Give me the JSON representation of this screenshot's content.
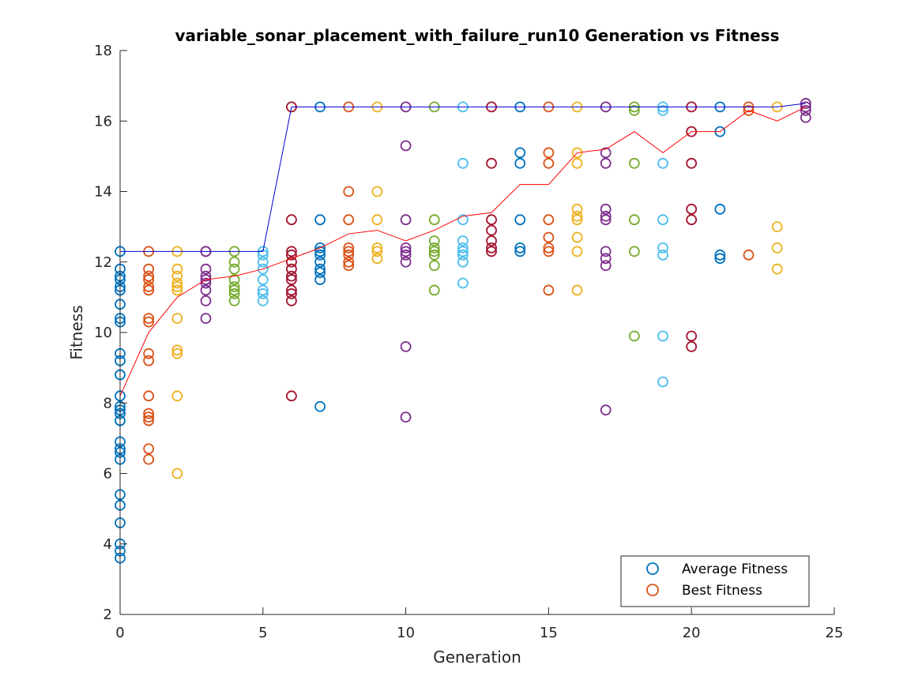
{
  "chart_data": {
    "type": "scatter",
    "title": "variable_sonar_placement_with_failure_run10 Generation vs Fitness",
    "xlabel": "Generation",
    "ylabel": "Fitness",
    "xlim": [
      0,
      25
    ],
    "ylim": [
      2,
      18
    ],
    "xticks": [
      "0",
      "5",
      "10",
      "15",
      "20",
      "25"
    ],
    "yticks": [
      "2",
      "4",
      "6",
      "8",
      "10",
      "12",
      "14",
      "16",
      "18"
    ],
    "grid": false,
    "legend_position": "bottom-right",
    "legend": [
      {
        "label": "Average Fitness",
        "color": "#0072BD"
      },
      {
        "label": "Best Fitness",
        "color": "#D95319"
      }
    ],
    "generation_colors": [
      "#0072BD",
      "#D95319",
      "#EDB120",
      "#7E2F8E",
      "#77AC30",
      "#4DBEEE",
      "#A2142F"
    ],
    "best_line_color": "#0000CC",
    "average_line_color": "#FF0000",
    "population": [
      {
        "generation": 0,
        "fitness": [
          12.3,
          11.8,
          11.6,
          11.5,
          11.3,
          11.2,
          10.8,
          10.4,
          10.3,
          9.4,
          9.2,
          8.8,
          8.2,
          7.9,
          7.8,
          7.7,
          7.5,
          6.9,
          6.7,
          6.6,
          6.4,
          5.4,
          5.1,
          4.6,
          4.0,
          3.8,
          3.6
        ]
      },
      {
        "generation": 1,
        "fitness": [
          12.3,
          11.8,
          11.6,
          11.5,
          11.3,
          11.2,
          10.4,
          10.3,
          9.4,
          9.2,
          8.2,
          7.7,
          7.6,
          7.5,
          6.7,
          6.4
        ]
      },
      {
        "generation": 2,
        "fitness": [
          12.3,
          11.8,
          11.6,
          11.4,
          11.3,
          11.2,
          10.4,
          9.5,
          9.4,
          8.2,
          6.0
        ]
      },
      {
        "generation": 3,
        "fitness": [
          12.3,
          12.3,
          11.8,
          11.6,
          11.5,
          11.4,
          11.2,
          10.9,
          10.4
        ]
      },
      {
        "generation": 4,
        "fitness": [
          12.3,
          12.0,
          11.8,
          11.5,
          11.3,
          11.2,
          11.1,
          10.9
        ]
      },
      {
        "generation": 5,
        "fitness": [
          12.3,
          12.2,
          12.0,
          11.8,
          11.5,
          11.2,
          11.1,
          10.9
        ]
      },
      {
        "generation": 6,
        "fitness": [
          16.4,
          13.2,
          12.3,
          12.2,
          12.0,
          11.8,
          11.6,
          11.5,
          11.2,
          11.1,
          10.9,
          8.2
        ]
      },
      {
        "generation": 7,
        "fitness": [
          16.4,
          13.2,
          12.4,
          12.3,
          12.2,
          12.0,
          11.8,
          11.7,
          11.5,
          7.9
        ]
      },
      {
        "generation": 8,
        "fitness": [
          16.4,
          14.0,
          13.2,
          12.4,
          12.3,
          12.2,
          12.0,
          11.9
        ]
      },
      {
        "generation": 9,
        "fitness": [
          16.4,
          14.0,
          13.2,
          12.4,
          12.3,
          12.1
        ]
      },
      {
        "generation": 10,
        "fitness": [
          16.4,
          15.3,
          13.2,
          12.4,
          12.3,
          12.2,
          12.0,
          9.6,
          7.6
        ]
      },
      {
        "generation": 11,
        "fitness": [
          16.4,
          13.2,
          12.6,
          12.4,
          12.3,
          12.2,
          11.9,
          11.2
        ]
      },
      {
        "generation": 12,
        "fitness": [
          16.4,
          14.8,
          13.2,
          12.6,
          12.4,
          12.3,
          12.2,
          12.0,
          11.4
        ]
      },
      {
        "generation": 13,
        "fitness": [
          16.4,
          14.8,
          13.2,
          12.9,
          12.6,
          12.4,
          12.3
        ]
      },
      {
        "generation": 14,
        "fitness": [
          16.4,
          15.1,
          14.8,
          13.2,
          12.4,
          12.3
        ]
      },
      {
        "generation": 15,
        "fitness": [
          16.4,
          15.1,
          14.8,
          13.2,
          12.7,
          12.4,
          12.3,
          11.2
        ]
      },
      {
        "generation": 16,
        "fitness": [
          16.4,
          15.1,
          14.8,
          13.5,
          13.3,
          13.2,
          12.7,
          12.3,
          11.2
        ]
      },
      {
        "generation": 17,
        "fitness": [
          16.4,
          15.1,
          14.8,
          13.5,
          13.3,
          13.2,
          12.3,
          12.1,
          11.9,
          7.8
        ]
      },
      {
        "generation": 18,
        "fitness": [
          16.4,
          16.3,
          14.8,
          13.2,
          12.3,
          9.9
        ]
      },
      {
        "generation": 19,
        "fitness": [
          16.4,
          16.3,
          14.8,
          13.2,
          12.4,
          12.2,
          9.9,
          8.6
        ]
      },
      {
        "generation": 20,
        "fitness": [
          16.4,
          15.7,
          14.8,
          13.5,
          13.2,
          9.9,
          9.6
        ]
      },
      {
        "generation": 21,
        "fitness": [
          16.4,
          15.7,
          13.5,
          12.2,
          12.1
        ]
      },
      {
        "generation": 22,
        "fitness": [
          16.4,
          16.3,
          12.2
        ]
      },
      {
        "generation": 23,
        "fitness": [
          16.4,
          13.0,
          12.4,
          11.8
        ]
      },
      {
        "generation": 24,
        "fitness": [
          16.5,
          16.4,
          16.3,
          16.1
        ]
      }
    ],
    "series": [
      {
        "kind": "best",
        "x": [
          0,
          5,
          6,
          7,
          8,
          9,
          10,
          11,
          12,
          13,
          14,
          15,
          16,
          17,
          18,
          19,
          20,
          21,
          22,
          23,
          24
        ],
        "values": [
          12.3,
          12.3,
          16.4,
          16.4,
          16.4,
          16.4,
          16.4,
          16.4,
          16.4,
          16.4,
          16.4,
          16.4,
          16.4,
          16.4,
          16.4,
          16.4,
          16.4,
          16.4,
          16.4,
          16.4,
          16.5
        ]
      },
      {
        "kind": "average",
        "x": [
          0,
          1,
          2,
          3,
          4,
          5,
          6,
          7,
          8,
          9,
          10,
          11,
          12,
          13,
          14,
          15,
          16,
          17,
          18,
          19,
          20,
          21,
          22,
          23,
          24
        ],
        "values": [
          8.2,
          10.0,
          11.0,
          11.5,
          11.6,
          11.8,
          12.1,
          12.4,
          12.8,
          12.9,
          12.6,
          12.9,
          13.3,
          13.4,
          14.2,
          14.2,
          15.1,
          15.2,
          15.7,
          15.1,
          15.7,
          15.7,
          16.3,
          16.0,
          16.4
        ]
      }
    ]
  }
}
